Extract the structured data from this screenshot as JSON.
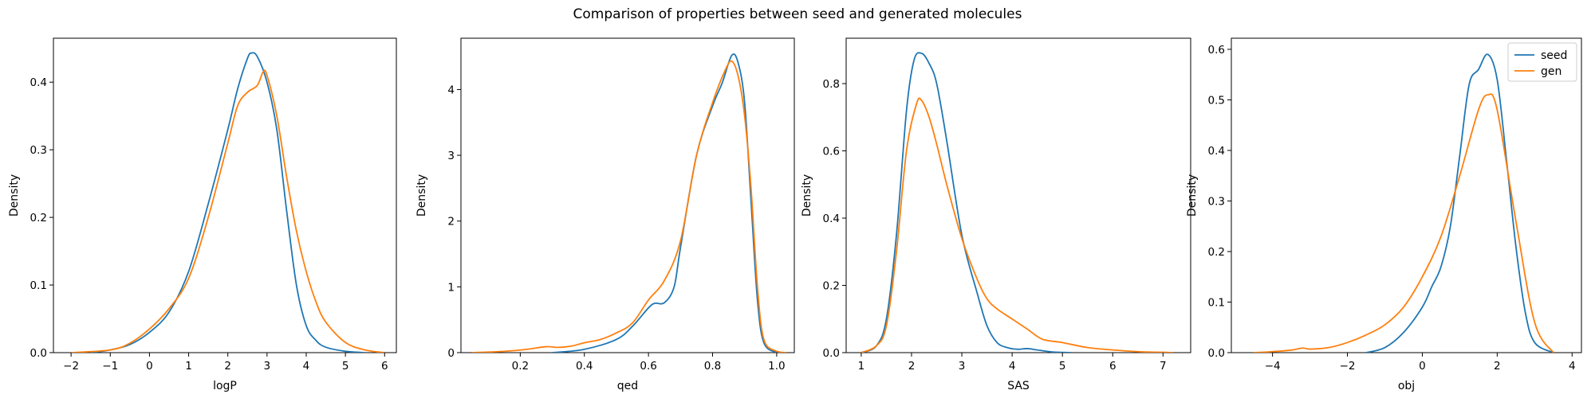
{
  "figure": {
    "title": "Comparison of properties between seed and generated molecules"
  },
  "colors": {
    "seed": "#1f77b4",
    "gen": "#ff7f0e"
  },
  "chart_data": [
    {
      "type": "line",
      "xlabel": "logP",
      "ylabel": "Density",
      "xlim": [
        -2.45,
        6.3
      ],
      "ylim": [
        0,
        0.465
      ],
      "xticks": [
        -2,
        -1,
        0,
        1,
        2,
        3,
        4,
        5,
        6
      ],
      "yticks": [
        0.0,
        0.1,
        0.2,
        0.3,
        0.4
      ],
      "yticklabels": [
        "0.0",
        "0.1",
        "0.2",
        "0.3",
        "0.4"
      ],
      "legend": false,
      "series": [
        {
          "name": "seed",
          "color": "#1f77b4",
          "x": [
            -1.5,
            -1.0,
            -0.5,
            0.0,
            0.5,
            1.0,
            1.5,
            2.0,
            2.25,
            2.5,
            2.6,
            2.75,
            3.0,
            3.25,
            3.5,
            3.75,
            4.0,
            4.25,
            4.5,
            5.0,
            5.5
          ],
          "y": [
            0.0,
            0.004,
            0.012,
            0.03,
            0.06,
            0.12,
            0.22,
            0.33,
            0.39,
            0.435,
            0.443,
            0.438,
            0.4,
            0.33,
            0.21,
            0.1,
            0.04,
            0.018,
            0.008,
            0.002,
            0.0
          ]
        },
        {
          "name": "gen",
          "color": "#ff7f0e",
          "x": [
            -2.0,
            -1.0,
            -0.5,
            0.0,
            0.5,
            1.0,
            1.5,
            2.0,
            2.25,
            2.5,
            2.75,
            2.9,
            3.0,
            3.25,
            3.5,
            3.75,
            4.0,
            4.25,
            4.5,
            5.0,
            5.5,
            6.0
          ],
          "y": [
            0.0,
            0.004,
            0.014,
            0.035,
            0.065,
            0.11,
            0.2,
            0.31,
            0.365,
            0.385,
            0.395,
            0.415,
            0.41,
            0.35,
            0.26,
            0.18,
            0.12,
            0.075,
            0.045,
            0.015,
            0.004,
            0.0
          ]
        }
      ]
    },
    {
      "type": "line",
      "xlabel": "qed",
      "ylabel": "Density",
      "xlim": [
        0.015,
        1.055
      ],
      "ylim": [
        0,
        4.78
      ],
      "xticks": [
        0.2,
        0.4,
        0.6,
        0.8,
        1.0
      ],
      "xticklabels": [
        "0.2",
        "0.4",
        "0.6",
        "0.8",
        "1.0"
      ],
      "yticks": [
        0,
        1,
        2,
        3,
        4
      ],
      "legend": false,
      "series": [
        {
          "name": "seed",
          "color": "#1f77b4",
          "x": [
            0.3,
            0.4,
            0.5,
            0.55,
            0.6,
            0.62,
            0.65,
            0.68,
            0.7,
            0.75,
            0.8,
            0.83,
            0.86,
            0.88,
            0.9,
            0.92,
            0.94,
            0.96,
            1.0
          ],
          "y": [
            0.0,
            0.05,
            0.2,
            0.4,
            0.68,
            0.75,
            0.76,
            1.0,
            1.6,
            3.0,
            3.75,
            4.1,
            4.52,
            4.4,
            3.8,
            2.3,
            0.8,
            0.15,
            0.0
          ]
        },
        {
          "name": "gen",
          "color": "#ff7f0e",
          "x": [
            0.05,
            0.15,
            0.22,
            0.28,
            0.32,
            0.36,
            0.4,
            0.45,
            0.5,
            0.55,
            0.6,
            0.65,
            0.7,
            0.75,
            0.8,
            0.84,
            0.86,
            0.88,
            0.9,
            0.92,
            0.94,
            0.96,
            1.0,
            1.03
          ],
          "y": [
            0.0,
            0.02,
            0.05,
            0.09,
            0.08,
            0.1,
            0.15,
            0.2,
            0.3,
            0.45,
            0.8,
            1.1,
            1.7,
            3.0,
            3.8,
            4.3,
            4.43,
            4.2,
            3.6,
            2.5,
            1.0,
            0.2,
            0.02,
            0.0
          ]
        }
      ]
    },
    {
      "type": "line",
      "xlabel": "SAS",
      "ylabel": "Density",
      "xlim": [
        0.7,
        7.55
      ],
      "ylim": [
        0,
        0.935
      ],
      "xticks": [
        1,
        2,
        3,
        4,
        5,
        6,
        7
      ],
      "yticks": [
        0.0,
        0.2,
        0.4,
        0.6,
        0.8
      ],
      "yticklabels": [
        "0.0",
        "0.2",
        "0.4",
        "0.6",
        "0.8"
      ],
      "legend": false,
      "series": [
        {
          "name": "seed",
          "color": "#1f77b4",
          "x": [
            1.0,
            1.3,
            1.5,
            1.7,
            1.9,
            2.05,
            2.2,
            2.35,
            2.5,
            2.7,
            3.0,
            3.3,
            3.5,
            3.7,
            3.9,
            4.1,
            4.3,
            4.5,
            4.8,
            5.2
          ],
          "y": [
            0.0,
            0.02,
            0.1,
            0.35,
            0.72,
            0.87,
            0.89,
            0.86,
            0.8,
            0.63,
            0.35,
            0.18,
            0.08,
            0.03,
            0.015,
            0.01,
            0.012,
            0.008,
            0.002,
            0.0
          ]
        },
        {
          "name": "gen",
          "color": "#ff7f0e",
          "x": [
            1.0,
            1.3,
            1.5,
            1.7,
            1.9,
            2.1,
            2.2,
            2.35,
            2.5,
            2.7,
            3.0,
            3.3,
            3.5,
            3.7,
            4.0,
            4.3,
            4.6,
            5.0,
            5.5,
            6.0,
            6.5,
            7.0,
            7.2
          ],
          "y": [
            0.0,
            0.02,
            0.08,
            0.3,
            0.6,
            0.74,
            0.75,
            0.7,
            0.62,
            0.5,
            0.34,
            0.22,
            0.16,
            0.13,
            0.1,
            0.07,
            0.04,
            0.03,
            0.015,
            0.008,
            0.003,
            0.001,
            0.0
          ]
        }
      ]
    },
    {
      "type": "line",
      "xlabel": "obj",
      "ylabel": "Density",
      "xlim": [
        -5.1,
        4.25
      ],
      "ylim": [
        0,
        0.622
      ],
      "xticks": [
        -4,
        -2,
        0,
        2,
        4
      ],
      "yticks": [
        0.0,
        0.1,
        0.2,
        0.3,
        0.4,
        0.5,
        0.6
      ],
      "yticklabels": [
        "0.0",
        "0.1",
        "0.2",
        "0.3",
        "0.4",
        "0.5",
        "0.6"
      ],
      "legend": true,
      "legend_position": "upper right",
      "legend_labels": [
        "seed",
        "gen"
      ],
      "series": [
        {
          "name": "seed",
          "color": "#1f77b4",
          "x": [
            -1.5,
            -1.0,
            -0.5,
            0.0,
            0.25,
            0.5,
            0.75,
            1.0,
            1.25,
            1.5,
            1.75,
            2.0,
            2.25,
            2.5,
            2.75,
            3.0,
            3.5
          ],
          "y": [
            0.0,
            0.01,
            0.04,
            0.09,
            0.13,
            0.17,
            0.25,
            0.39,
            0.53,
            0.56,
            0.59,
            0.54,
            0.38,
            0.21,
            0.08,
            0.02,
            0.0
          ]
        },
        {
          "name": "gen",
          "color": "#ff7f0e",
          "x": [
            -4.5,
            -4.0,
            -3.5,
            -3.2,
            -3.0,
            -2.5,
            -2.0,
            -1.5,
            -1.0,
            -0.5,
            0.0,
            0.5,
            1.0,
            1.5,
            1.75,
            2.0,
            2.5,
            3.0,
            3.5
          ],
          "y": [
            0.0,
            0.002,
            0.005,
            0.009,
            0.007,
            0.01,
            0.02,
            0.035,
            0.055,
            0.09,
            0.15,
            0.23,
            0.35,
            0.48,
            0.51,
            0.48,
            0.26,
            0.06,
            0.0
          ]
        }
      ]
    }
  ]
}
